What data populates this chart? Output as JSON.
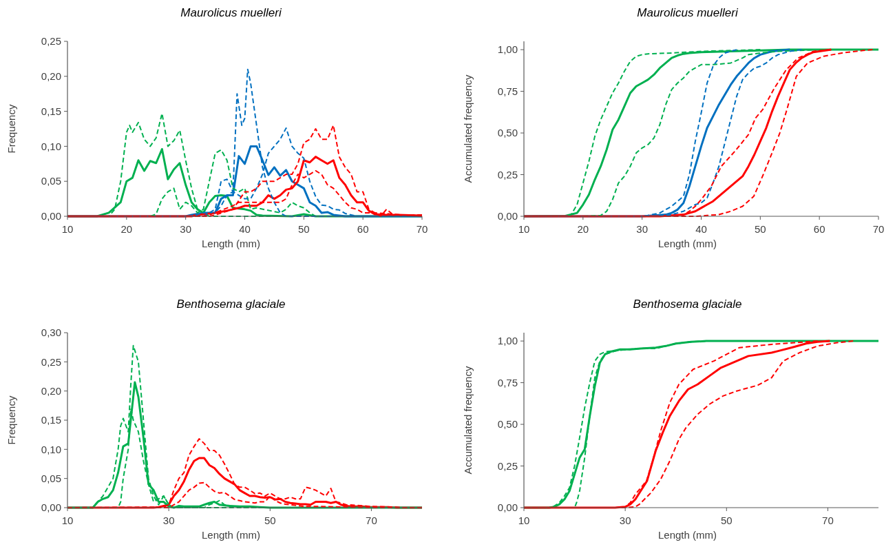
{
  "chart_data": [
    {
      "type": "line",
      "title": "Maurolicus muelleri",
      "xlabel": "Length (mm)",
      "ylabel": "Frequency",
      "xlim": [
        10,
        70
      ],
      "xticks": [
        10,
        20,
        30,
        40,
        50,
        60,
        70
      ],
      "ylim": [
        0,
        0.25
      ],
      "yticks": [
        {
          "value": 0,
          "label": "0,00"
        },
        {
          "value": 0.05,
          "label": "0,05"
        },
        {
          "value": 0.1,
          "label": "0,10"
        },
        {
          "value": 0.15,
          "label": "0,15"
        },
        {
          "value": 0.2,
          "label": "0,20"
        },
        {
          "value": 0.25,
          "label": "0,25"
        }
      ],
      "series": [
        {
          "color": "#00b050",
          "line_style": "dashed",
          "x": [
            10,
            17,
            18,
            19,
            20,
            20.5,
            21,
            22,
            23,
            24,
            25,
            26,
            27,
            28,
            29,
            30,
            31,
            32,
            33,
            34,
            36,
            70
          ],
          "values": [
            0,
            0,
            0.01,
            0.05,
            0.12,
            0.13,
            0.12,
            0.134,
            0.11,
            0.1,
            0.112,
            0.147,
            0.1,
            0.108,
            0.123,
            0.08,
            0.04,
            0.01,
            0.005,
            0,
            0,
            0
          ]
        },
        {
          "color": "#00b050",
          "line_style": "dashed",
          "x": [
            10,
            24,
            25,
            26,
            27,
            28,
            29,
            30,
            31,
            32,
            33,
            34,
            35,
            36,
            37,
            38,
            39,
            40,
            41,
            42,
            46,
            47,
            48,
            49,
            50,
            51,
            52,
            70
          ],
          "values": [
            0,
            0,
            0.003,
            0.025,
            0.035,
            0.04,
            0.01,
            0.02,
            0.015,
            0.005,
            0.01,
            0.05,
            0.09,
            0.095,
            0.08,
            0.04,
            0.035,
            0.04,
            0.01,
            0.012,
            0.005,
            0.01,
            0.02,
            0.015,
            0.012,
            0.005,
            0,
            0
          ]
        },
        {
          "color": "#0070c0",
          "line_style": "dashed",
          "x": [
            10,
            31,
            33,
            35,
            36,
            37,
            38,
            38.7,
            39.5,
            40,
            40.5,
            41,
            42,
            43,
            44,
            45,
            46,
            47,
            70
          ],
          "values": [
            0,
            0,
            0.005,
            0.005,
            0.015,
            0.03,
            0.035,
            0.175,
            0.13,
            0.14,
            0.21,
            0.19,
            0.13,
            0.07,
            0.04,
            0.02,
            0.005,
            0,
            0
          ]
        },
        {
          "color": "#0070c0",
          "line_style": "dashed",
          "x": [
            10,
            33,
            35,
            36,
            37,
            38,
            39,
            40,
            41,
            42,
            43,
            44,
            45,
            46,
            47,
            48,
            49,
            50,
            51,
            52,
            53,
            54,
            55,
            56,
            57,
            58,
            59,
            70
          ],
          "values": [
            0,
            0,
            0.01,
            0.05,
            0.053,
            0.035,
            0.03,
            0.025,
            0.025,
            0.04,
            0.06,
            0.09,
            0.1,
            0.11,
            0.126,
            0.1,
            0.09,
            0.083,
            0.05,
            0.028,
            0.016,
            0.015,
            0.01,
            0.009,
            0.004,
            0.002,
            0,
            0
          ]
        },
        {
          "color": "#ff0000",
          "line_style": "dashed",
          "x": [
            10,
            34,
            35,
            38,
            40,
            41,
            42,
            43,
            44,
            45,
            46,
            47,
            48,
            49,
            50,
            51,
            52,
            53,
            54,
            55,
            56,
            57,
            58,
            59,
            60,
            61,
            62,
            63,
            64,
            65,
            66,
            70
          ],
          "values": [
            0,
            0,
            0.002,
            0.01,
            0.035,
            0.035,
            0.04,
            0.05,
            0.05,
            0.05,
            0.055,
            0.06,
            0.06,
            0.075,
            0.105,
            0.11,
            0.125,
            0.11,
            0.11,
            0.13,
            0.085,
            0.07,
            0.06,
            0.035,
            0.035,
            0.01,
            0.005,
            0,
            0.01,
            0.003,
            0.002,
            0.002
          ]
        },
        {
          "color": "#ff0000",
          "line_style": "dashed",
          "x": [
            10,
            33,
            34,
            38,
            39,
            40,
            42,
            44,
            46,
            47,
            48,
            49,
            50,
            51,
            52,
            53,
            54,
            55,
            56,
            57,
            58,
            59,
            60,
            62,
            65,
            70
          ],
          "values": [
            0,
            0,
            0.002,
            0.015,
            0.02,
            0.02,
            0.02,
            0.02,
            0.02,
            0.025,
            0.045,
            0.06,
            0.055,
            0.06,
            0.065,
            0.06,
            0.045,
            0.04,
            0.03,
            0.02,
            0.012,
            0.01,
            0.005,
            0.005,
            0.003,
            0
          ]
        },
        {
          "color": "#00b050",
          "line_style": "solid",
          "x": [
            10,
            15,
            17,
            19,
            20,
            21,
            22,
            23,
            24,
            25,
            26,
            27,
            28,
            29,
            30,
            31,
            32,
            33,
            34,
            35,
            36,
            37,
            38,
            40,
            41,
            42,
            43,
            48,
            50,
            52,
            70
          ],
          "values": [
            0,
            0,
            0.005,
            0.02,
            0.05,
            0.055,
            0.08,
            0.065,
            0.079,
            0.076,
            0.096,
            0.053,
            0.067,
            0.076,
            0.045,
            0.02,
            0.01,
            0.005,
            0.02,
            0.029,
            0.03,
            0.029,
            0.012,
            0.01,
            0.008,
            0.002,
            0.001,
            0,
            0.003,
            0,
            0
          ]
        },
        {
          "color": "#0070c0",
          "line_style": "solid",
          "x": [
            10,
            30,
            31,
            33,
            35,
            36,
            37,
            38,
            39,
            40,
            41,
            42,
            43,
            44,
            45,
            46,
            47,
            48,
            49,
            50,
            51,
            52,
            53,
            54,
            55,
            56,
            57,
            70
          ],
          "values": [
            0,
            0,
            0.002,
            0.005,
            0.005,
            0.025,
            0.03,
            0.03,
            0.086,
            0.075,
            0.1,
            0.1,
            0.08,
            0.059,
            0.07,
            0.058,
            0.066,
            0.05,
            0.045,
            0.04,
            0.02,
            0.015,
            0.005,
            0.006,
            0.002,
            0.001,
            0,
            0
          ]
        },
        {
          "color": "#ff0000",
          "line_style": "solid",
          "x": [
            10,
            31,
            32,
            35,
            37,
            38,
            39,
            40,
            41,
            42,
            43,
            44,
            45,
            46,
            47,
            48,
            49,
            50,
            51,
            52,
            53,
            54,
            55,
            56,
            57,
            58,
            59,
            60,
            61,
            62,
            64,
            66,
            70
          ],
          "values": [
            0,
            0,
            0.002,
            0.005,
            0.008,
            0.01,
            0.012,
            0.015,
            0.015,
            0.015,
            0.02,
            0.03,
            0.025,
            0.03,
            0.038,
            0.04,
            0.05,
            0.08,
            0.077,
            0.085,
            0.08,
            0.075,
            0.08,
            0.055,
            0.045,
            0.03,
            0.02,
            0.02,
            0.008,
            0.003,
            0.002,
            0.002,
            0.001
          ]
        }
      ]
    },
    {
      "type": "line",
      "title": "Maurolicus muelleri",
      "xlabel": "Length (mm)",
      "ylabel": "Accumulated frequency",
      "xlim": [
        10,
        70
      ],
      "xticks": [
        10,
        20,
        30,
        40,
        50,
        60,
        70
      ],
      "ylim": [
        0,
        1.05
      ],
      "yticks": [
        {
          "value": 0,
          "label": "0,00"
        },
        {
          "value": 0.25,
          "label": "0,25"
        },
        {
          "value": 0.5,
          "label": "0,50"
        },
        {
          "value": 0.75,
          "label": "0,75"
        },
        {
          "value": 1,
          "label": "1,00"
        }
      ],
      "series": [
        {
          "color": "#00b050",
          "line_style": "dashed",
          "x": [
            10,
            17,
            18,
            19,
            20,
            21,
            22,
            23,
            24,
            25,
            26,
            27,
            28,
            29,
            30,
            31,
            35,
            40,
            45,
            50
          ],
          "values": [
            0,
            0,
            0.01,
            0.07,
            0.2,
            0.33,
            0.48,
            0.58,
            0.66,
            0.74,
            0.8,
            0.87,
            0.93,
            0.96,
            0.97,
            0.975,
            0.98,
            0.99,
            0.995,
            1
          ]
        },
        {
          "color": "#00b050",
          "line_style": "dashed",
          "x": [
            10,
            20,
            23,
            24,
            25,
            26,
            27,
            28,
            29,
            30,
            31,
            32,
            33,
            34,
            35,
            36,
            37,
            38,
            39,
            40,
            42,
            45,
            47,
            48,
            50,
            53,
            60
          ],
          "values": [
            0,
            0,
            0.005,
            0.03,
            0.1,
            0.2,
            0.24,
            0.3,
            0.38,
            0.41,
            0.43,
            0.47,
            0.55,
            0.67,
            0.76,
            0.8,
            0.83,
            0.87,
            0.89,
            0.91,
            0.91,
            0.92,
            0.95,
            0.97,
            0.98,
            0.99,
            1
          ]
        },
        {
          "color": "#0070c0",
          "line_style": "dashed",
          "x": [
            10,
            30,
            31,
            33,
            34,
            35,
            36,
            37,
            38,
            39,
            40,
            41,
            42,
            43,
            44,
            45,
            46
          ],
          "values": [
            0,
            0,
            0.005,
            0.02,
            0.04,
            0.06,
            0.09,
            0.12,
            0.25,
            0.45,
            0.62,
            0.8,
            0.9,
            0.95,
            0.98,
            0.99,
            1
          ]
        },
        {
          "color": "#0070c0",
          "line_style": "dashed",
          "x": [
            10,
            32,
            35,
            37,
            38,
            39,
            40,
            41,
            42,
            43,
            44,
            45,
            46,
            47,
            48,
            49,
            50,
            51,
            52,
            53,
            55,
            57
          ],
          "values": [
            0,
            0,
            0.01,
            0.03,
            0.05,
            0.07,
            0.08,
            0.11,
            0.2,
            0.3,
            0.44,
            0.58,
            0.72,
            0.82,
            0.86,
            0.89,
            0.9,
            0.92,
            0.95,
            0.97,
            0.99,
            1
          ]
        },
        {
          "color": "#ff0000",
          "line_style": "dashed",
          "x": [
            10,
            35,
            37,
            38,
            39,
            40,
            41.7,
            43.4,
            45.7,
            48,
            49.2,
            50.4,
            52.4,
            54.4,
            56.4,
            59,
            62
          ],
          "values": [
            0,
            0,
            0.01,
            0.03,
            0.06,
            0.1,
            0.18,
            0.3,
            0.39,
            0.49,
            0.59,
            0.64,
            0.77,
            0.88,
            0.95,
            0.99,
            1
          ]
        },
        {
          "color": "#ff0000",
          "line_style": "dashed",
          "x": [
            10,
            39,
            41,
            43,
            45,
            47,
            48.9,
            50.5,
            52.1,
            53.3,
            54.5,
            56.1,
            58,
            60.7,
            63.8,
            67.4,
            69
          ],
          "values": [
            0,
            0,
            0.005,
            0.01,
            0.03,
            0.06,
            0.12,
            0.25,
            0.39,
            0.5,
            0.64,
            0.84,
            0.92,
            0.96,
            0.98,
            0.995,
            1
          ]
        },
        {
          "color": "#00b050",
          "line_style": "solid",
          "x": [
            10,
            17,
            19,
            20,
            21,
            22,
            23,
            24,
            25,
            26,
            27,
            28,
            29,
            30,
            31,
            32,
            33,
            34,
            35,
            36,
            37,
            38,
            40,
            45,
            50,
            55,
            70
          ],
          "values": [
            0,
            0.002,
            0.02,
            0.07,
            0.13,
            0.22,
            0.3,
            0.4,
            0.52,
            0.58,
            0.66,
            0.74,
            0.78,
            0.8,
            0.82,
            0.85,
            0.89,
            0.92,
            0.95,
            0.965,
            0.975,
            0.98,
            0.985,
            0.99,
            0.995,
            1,
            1
          ]
        },
        {
          "color": "#0070c0",
          "line_style": "solid",
          "x": [
            10,
            30,
            32,
            34,
            35,
            36,
            37,
            38,
            39,
            40,
            41,
            42,
            43,
            44,
            45,
            46,
            47,
            48,
            49,
            50,
            52,
            55
          ],
          "values": [
            0,
            0,
            0.005,
            0.01,
            0.02,
            0.04,
            0.08,
            0.18,
            0.3,
            0.42,
            0.53,
            0.6,
            0.67,
            0.73,
            0.79,
            0.84,
            0.88,
            0.92,
            0.95,
            0.97,
            0.99,
            1
          ]
        },
        {
          "color": "#ff0000",
          "line_style": "solid",
          "x": [
            10,
            33,
            35,
            37,
            39,
            40,
            41,
            42,
            43,
            44,
            45,
            46,
            47,
            48,
            49,
            50,
            51,
            52,
            53,
            54,
            55,
            56,
            57,
            58,
            59,
            60,
            62
          ],
          "values": [
            0,
            0,
            0.005,
            0.01,
            0.03,
            0.05,
            0.07,
            0.09,
            0.12,
            0.15,
            0.18,
            0.21,
            0.24,
            0.3,
            0.37,
            0.45,
            0.53,
            0.63,
            0.72,
            0.8,
            0.88,
            0.92,
            0.95,
            0.97,
            0.985,
            0.99,
            1
          ]
        }
      ]
    },
    {
      "type": "line",
      "title": "Benthosema glaciale",
      "xlabel": "Length (mm)",
      "ylabel": "Frequency",
      "xlim": [
        10,
        80
      ],
      "xticks": [
        10,
        30,
        50,
        70
      ],
      "ylim": [
        0,
        0.3
      ],
      "yticks": [
        {
          "value": 0,
          "label": "0,00"
        },
        {
          "value": 0.05,
          "label": "0,05"
        },
        {
          "value": 0.1,
          "label": "0,10"
        },
        {
          "value": 0.15,
          "label": "0,15"
        },
        {
          "value": 0.2,
          "label": "0,20"
        },
        {
          "value": 0.25,
          "label": "0,25"
        },
        {
          "value": 0.3,
          "label": "0,30"
        }
      ],
      "series": [
        {
          "color": "#00b050",
          "line_style": "dashed",
          "x": [
            10,
            15,
            17,
            19,
            20,
            20.5,
            21,
            22,
            22.5,
            23,
            24,
            25,
            26,
            27,
            28,
            29,
            30,
            31,
            80
          ],
          "values": [
            0,
            0,
            0.02,
            0.05,
            0.1,
            0.14,
            0.153,
            0.13,
            0.21,
            0.278,
            0.25,
            0.15,
            0.05,
            0.02,
            0.005,
            0.02,
            0.005,
            0,
            0
          ]
        },
        {
          "color": "#00b050",
          "line_style": "dashed",
          "x": [
            10,
            20,
            20.5,
            21,
            22,
            22.5,
            23,
            24,
            25,
            26,
            27,
            28,
            29,
            30,
            31,
            37,
            38,
            39,
            40,
            41,
            43,
            45,
            80
          ],
          "values": [
            0,
            0,
            0.01,
            0.05,
            0.1,
            0.17,
            0.15,
            0.13,
            0.08,
            0.04,
            0.01,
            0.015,
            0.02,
            0.005,
            0,
            0,
            0.005,
            0.008,
            0.012,
            0.005,
            0.002,
            0,
            0
          ]
        },
        {
          "color": "#ff0000",
          "line_style": "dashed",
          "x": [
            10,
            29,
            30,
            31,
            32,
            33,
            34,
            35,
            36,
            37,
            38,
            39,
            40,
            41,
            42,
            43,
            44,
            45,
            46,
            47,
            48,
            49,
            50,
            51,
            52,
            53,
            54,
            55,
            56,
            57,
            58,
            59,
            60,
            61,
            62,
            63,
            64,
            65,
            67,
            70,
            75,
            76,
            80
          ],
          "values": [
            0,
            0.001,
            0.005,
            0.03,
            0.05,
            0.06,
            0.09,
            0.105,
            0.118,
            0.11,
            0.098,
            0.098,
            0.09,
            0.075,
            0.058,
            0.04,
            0.035,
            0.035,
            0.03,
            0.024,
            0.025,
            0.02,
            0.025,
            0.02,
            0.015,
            0.015,
            0.018,
            0.015,
            0.015,
            0.035,
            0.033,
            0.03,
            0.025,
            0.02,
            0.033,
            0.01,
            0.008,
            0.005,
            0.004,
            0.002,
            0.001,
            0,
            0
          ]
        },
        {
          "color": "#ff0000",
          "line_style": "dashed",
          "x": [
            10,
            30,
            31,
            32,
            33,
            34,
            35,
            36,
            37,
            38,
            39,
            40,
            41,
            42,
            43,
            44,
            45,
            46,
            47,
            48,
            49,
            50,
            51,
            52,
            53,
            55,
            57,
            60,
            65,
            70,
            80
          ],
          "values": [
            0,
            0,
            0.005,
            0.01,
            0.02,
            0.03,
            0.035,
            0.042,
            0.043,
            0.035,
            0.028,
            0.025,
            0.026,
            0.02,
            0.014,
            0.012,
            0.01,
            0.009,
            0.008,
            0.01,
            0.01,
            0.02,
            0.012,
            0.008,
            0.006,
            0.004,
            0.002,
            0.002,
            0.001,
            0,
            0
          ]
        },
        {
          "color": "#ff0000",
          "line_style": "solid",
          "x": [
            10,
            27,
            28,
            29,
            30,
            31,
            32,
            33,
            34,
            35,
            36,
            37,
            38,
            39,
            40,
            41,
            42,
            43,
            44,
            45,
            46,
            47,
            48,
            49,
            50,
            51,
            52,
            53,
            54,
            55,
            56,
            57,
            58,
            59,
            60,
            61,
            62,
            63,
            64,
            65,
            66,
            68,
            70,
            73,
            75,
            80
          ],
          "values": [
            0,
            0,
            0.001,
            0.003,
            0.005,
            0.02,
            0.03,
            0.045,
            0.065,
            0.08,
            0.085,
            0.085,
            0.073,
            0.068,
            0.058,
            0.05,
            0.045,
            0.04,
            0.03,
            0.025,
            0.02,
            0.02,
            0.018,
            0.017,
            0.018,
            0.014,
            0.015,
            0.01,
            0.008,
            0.007,
            0.006,
            0.006,
            0.005,
            0.01,
            0.01,
            0.01,
            0.008,
            0.01,
            0.005,
            0.003,
            0.002,
            0.002,
            0.001,
            0.001,
            0,
            0
          ]
        },
        {
          "color": "#00b050",
          "line_style": "solid",
          "x": [
            10,
            15,
            16,
            17,
            18,
            19,
            20,
            21,
            22,
            23.3,
            24,
            25,
            26,
            27,
            28,
            29,
            30,
            31,
            32,
            33,
            36,
            37,
            38,
            39,
            40,
            42,
            44,
            46,
            48,
            50,
            80
          ],
          "values": [
            0,
            0,
            0.01,
            0.015,
            0.018,
            0.03,
            0.06,
            0.105,
            0.11,
            0.215,
            0.19,
            0.12,
            0.04,
            0.03,
            0.01,
            0.01,
            0.002,
            0,
            0.003,
            0.002,
            0.002,
            0.005,
            0.008,
            0.01,
            0.005,
            0.003,
            0.002,
            0.002,
            0.001,
            0,
            0
          ]
        }
      ]
    },
    {
      "type": "line",
      "title": "Benthosema glaciale",
      "xlabel": "Length (mm)",
      "ylabel": "Accumulated frequency",
      "xlim": [
        10,
        80
      ],
      "xticks": [
        10,
        30,
        50,
        70
      ],
      "ylim": [
        0,
        1.05
      ],
      "yticks": [
        {
          "value": 0,
          "label": "0,00"
        },
        {
          "value": 0.25,
          "label": "0,25"
        },
        {
          "value": 0.5,
          "label": "0,50"
        },
        {
          "value": 0.75,
          "label": "0,75"
        },
        {
          "value": 1,
          "label": "1,00"
        }
      ],
      "series": [
        {
          "color": "#00b050",
          "line_style": "dashed",
          "x": [
            10,
            15,
            16,
            17,
            18,
            19,
            20,
            21,
            22,
            23,
            24,
            25,
            26,
            29,
            31,
            33,
            36,
            38,
            40,
            43,
            46
          ],
          "values": [
            0,
            0,
            0.01,
            0.03,
            0.07,
            0.12,
            0.25,
            0.42,
            0.6,
            0.75,
            0.88,
            0.92,
            0.935,
            0.945,
            0.95,
            0.955,
            0.955,
            0.97,
            0.985,
            0.995,
            1
          ]
        },
        {
          "color": "#00b050",
          "line_style": "dashed",
          "x": [
            10,
            20,
            20.4,
            21,
            22,
            23,
            24,
            25,
            26,
            28,
            30,
            33,
            36,
            38,
            40,
            43,
            46
          ],
          "values": [
            0,
            0,
            0.03,
            0.1,
            0.3,
            0.55,
            0.78,
            0.88,
            0.92,
            0.94,
            0.95,
            0.955,
            0.96,
            0.97,
            0.985,
            0.995,
            1
          ]
        },
        {
          "color": "#ff0000",
          "line_style": "dashed",
          "x": [
            10,
            28,
            30,
            31,
            32,
            34.2,
            35.6,
            37,
            38.8,
            40.6,
            43.4,
            47.5,
            52.5,
            58.9,
            63.4,
            68
          ],
          "values": [
            0,
            0,
            0.005,
            0.03,
            0.08,
            0.16,
            0.3,
            0.46,
            0.63,
            0.74,
            0.83,
            0.88,
            0.96,
            0.98,
            0.99,
            1
          ]
        },
        {
          "color": "#ff0000",
          "line_style": "dashed",
          "x": [
            10,
            30,
            32,
            32.8,
            35.1,
            37,
            38.8,
            40.6,
            42,
            44.3,
            46.6,
            49.3,
            52,
            56.2,
            58.9,
            61.2,
            64.4,
            68,
            71.8,
            75
          ],
          "values": [
            0,
            0,
            0.005,
            0.02,
            0.09,
            0.17,
            0.28,
            0.41,
            0.48,
            0.56,
            0.62,
            0.67,
            0.7,
            0.735,
            0.78,
            0.88,
            0.93,
            0.97,
            0.99,
            1
          ]
        },
        {
          "color": "#00b050",
          "line_style": "solid",
          "x": [
            10,
            15,
            16,
            17,
            18,
            19,
            20,
            21,
            22,
            23,
            24,
            25,
            26,
            27,
            29,
            31,
            33,
            36,
            38,
            40,
            43,
            46,
            80
          ],
          "values": [
            0,
            0,
            0.005,
            0.02,
            0.05,
            0.1,
            0.2,
            0.3,
            0.35,
            0.55,
            0.73,
            0.87,
            0.92,
            0.935,
            0.95,
            0.95,
            0.955,
            0.96,
            0.97,
            0.985,
            0.995,
            1,
            1
          ]
        },
        {
          "color": "#ff0000",
          "line_style": "solid",
          "x": [
            10,
            28,
            30,
            31,
            32,
            34.3,
            36,
            37.4,
            38.8,
            40.6,
            42.4,
            44.3,
            46.6,
            48.9,
            52,
            54.3,
            58.9,
            60.2,
            63.4,
            65.7,
            68,
            70.4
          ],
          "values": [
            0,
            0,
            0.005,
            0.02,
            0.05,
            0.16,
            0.34,
            0.45,
            0.55,
            0.64,
            0.71,
            0.74,
            0.79,
            0.84,
            0.88,
            0.91,
            0.93,
            0.94,
            0.965,
            0.985,
            0.995,
            1
          ]
        }
      ]
    }
  ]
}
